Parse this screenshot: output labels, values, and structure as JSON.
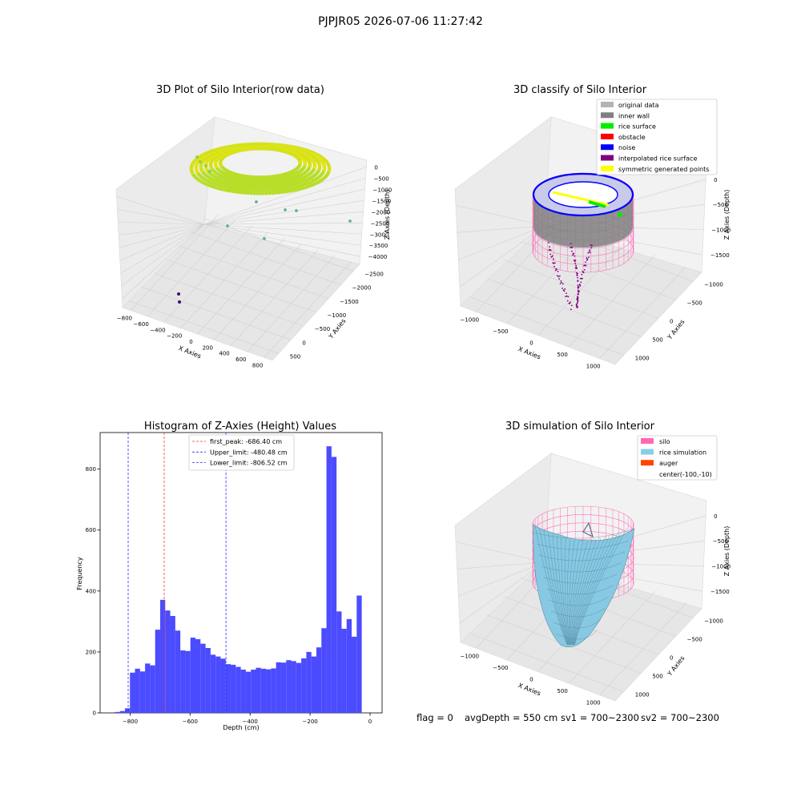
{
  "suptitle": "PJPJR05 2026-07-06 11:27:42",
  "footer": {
    "flag": "flag = 0",
    "avg": "avgDepth = 550 cm",
    "sv1": "sv1 = 700~2300",
    "sv2": "sv2 = 700~2300"
  },
  "colors": {
    "bar": "#4b4bff",
    "first_peak_line": "#e8383b",
    "limit_lines": "#2b2bff",
    "wireframe_pink": "#ff6fba",
    "rice_sim": "#87c9e2",
    "gray_wall": "#808080",
    "noise_blue": "#0000ff",
    "viridis_yellow": "#d4e21a"
  },
  "chart_data": [
    {
      "type": "scatter",
      "subtype": "3d",
      "title": "3D Plot of Silo Interior(row data)",
      "xlabel": "X Axies",
      "ylabel": "Y Axies",
      "zlabel": "Z Axies (Depth)",
      "xticks": [
        "−800",
        "−600",
        "−400",
        "−200",
        "0",
        "200",
        "400",
        "600",
        "800"
      ],
      "yticks": [
        "500",
        "0",
        "−500",
        "−1000",
        "−1500",
        "−2000",
        "−2500"
      ],
      "zticks": [
        "0",
        "−500",
        "−1000",
        "−1500",
        "−2000",
        "−2500",
        "−3000",
        "−3500",
        "−4000"
      ],
      "xlim": [
        -800,
        800
      ],
      "ylim": [
        -2500,
        500
      ],
      "zlim": [
        -4000,
        0
      ]
    },
    {
      "type": "scatter",
      "subtype": "3d",
      "title": "3D classify of Silo Interior",
      "xlabel": "X Axies",
      "ylabel": "Y Axies",
      "zlabel": "Z Axies (Depth)",
      "xticks": [
        "−1000",
        "−500",
        "0",
        "500",
        "1000"
      ],
      "yticks": [
        "1000",
        "500",
        "0",
        "−500",
        "−1000"
      ],
      "zticks": [
        "0",
        "−500",
        "−1000",
        "−1500"
      ],
      "legend_position": "top-right",
      "legend": [
        {
          "label": "original data",
          "color": "#b4b4b4"
        },
        {
          "label": "inner wall",
          "color": "#808080"
        },
        {
          "label": "rice surface",
          "color": "#00ee00"
        },
        {
          "label": "obstacle",
          "color": "#ff0000"
        },
        {
          "label": "noise",
          "color": "#0000ff"
        },
        {
          "label": "interpolated rice surface",
          "color": "#800080"
        },
        {
          "label": "symmetric generated points",
          "color": "#ffff00"
        }
      ]
    },
    {
      "type": "bar",
      "subtype": "histogram",
      "title": "Histogram of Z-Axies (Height) Values",
      "xlabel": "Depth (cm)",
      "ylabel": "Frequency",
      "xlim": [
        -900,
        40
      ],
      "ylim": [
        0,
        920
      ],
      "xticks": [
        -800,
        -600,
        -400,
        -200,
        0
      ],
      "xtick_labels": [
        "−800",
        "−600",
        "−400",
        "−200",
        "0"
      ],
      "yticks": [
        0,
        200,
        400,
        600,
        800
      ],
      "bin_width": 16.8,
      "bins_start": -851,
      "values": [
        3,
        6,
        15,
        132,
        145,
        136,
        162,
        156,
        273,
        371,
        336,
        318,
        270,
        205,
        203,
        247,
        242,
        227,
        213,
        191,
        185,
        178,
        160,
        158,
        151,
        142,
        135,
        142,
        148,
        145,
        143,
        146,
        166,
        165,
        173,
        170,
        164,
        179,
        200,
        185,
        215,
        278,
        875,
        840,
        333,
        276,
        308,
        250,
        385
      ],
      "legend_position": "top-center",
      "reference_lines": [
        {
          "name": "first_peak",
          "label": "first_peak: -686.40 cm",
          "x": -686.4,
          "color": "#e8383b"
        },
        {
          "name": "Upper_limit",
          "label": "Upper_limit: -480.48 cm",
          "x": -480.48,
          "color": "#2b2bff"
        },
        {
          "name": "Lower_limit",
          "label": "Lower_limit: -806.52 cm",
          "x": -806.52,
          "color": "#2b2bff"
        }
      ]
    },
    {
      "type": "area",
      "subtype": "3d-surface",
      "title": "3D simulation of Silo Interior",
      "xlabel": "X Axies",
      "ylabel": "Y Axies",
      "zlabel": "Z Axies (Depth)",
      "xticks": [
        "−1000",
        "−500",
        "0",
        "500",
        "1000"
      ],
      "yticks": [
        "1000",
        "500",
        "0",
        "−500",
        "−1000"
      ],
      "zticks": [
        "0",
        "−500",
        "−1000",
        "−1500"
      ],
      "legend_position": "top-right",
      "legend": [
        {
          "label": "silo",
          "color": "#ff69b4"
        },
        {
          "label": "rice simulation",
          "color": "#87ceeb"
        },
        {
          "label": "auger",
          "color": "#ff4500"
        },
        {
          "label": "center(-100,-10)",
          "color": ""
        }
      ]
    }
  ]
}
